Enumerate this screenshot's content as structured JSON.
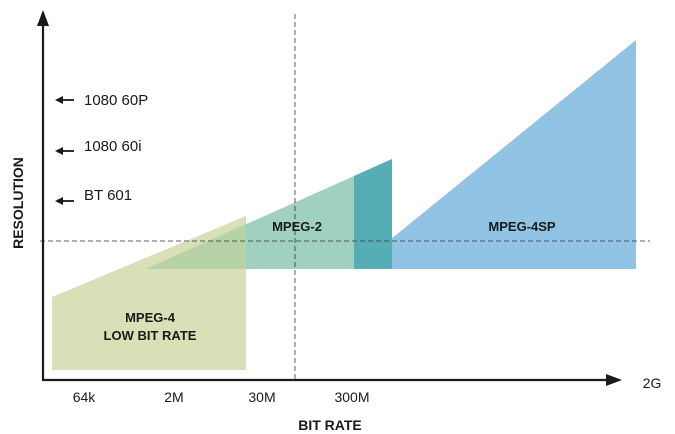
{
  "axes": {
    "x_title": "BIT RATE",
    "y_title": "RESOLUTION",
    "x_ticks": [
      "64k",
      "2M",
      "30M",
      "300M",
      "2G"
    ]
  },
  "resolution_markers": [
    "1080 60P",
    "1080 60i",
    "BT 601"
  ],
  "regions": [
    {
      "name": "MPEG-4 LOW BIT RATE",
      "line1": "MPEG-4",
      "line2": "LOW BIT RATE",
      "color": "#d9dfb6"
    },
    {
      "name": "MPEG-2",
      "label": "MPEG-2",
      "color": "#8fc8b5"
    },
    {
      "name": "MPEG-4SP",
      "label": "MPEG-4SP",
      "color": "#7db9df"
    }
  ],
  "colors": {
    "overlap_mp4low_mp2": "#b7d2a6",
    "overlap_mp2_mp4sp": "#55aeb6",
    "axis": "#1a1a1a"
  }
}
